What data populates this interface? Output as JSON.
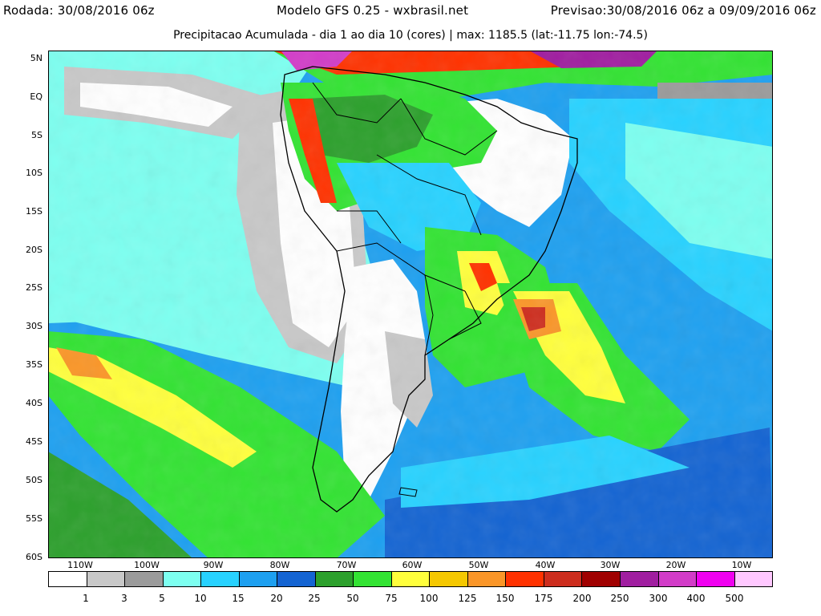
{
  "header": {
    "rodada": "Rodada: 30/08/2016 06z",
    "modelo": "Modelo GFS 0.25 - wxbrasil.net",
    "previsao": "Previsao:30/08/2016 06z a 09/09/2016 06z",
    "subtitle": "Precipitacao Acumulada - dia 1 ao dia 10 (cores) | max: 1185.5 (lat:-11.75 lon:-74.5)"
  },
  "map": {
    "lat_labels": [
      "5N",
      "EQ",
      "5S",
      "10S",
      "15S",
      "20S",
      "25S",
      "30S",
      "35S",
      "40S",
      "45S",
      "50S",
      "55S",
      "60S"
    ],
    "lon_labels": [
      "110W",
      "100W",
      "90W",
      "80W",
      "70W",
      "60W",
      "50W",
      "40W",
      "30W",
      "20W",
      "10W"
    ]
  },
  "legend": {
    "colors": [
      "#ffffff",
      "#c8c8c8",
      "#9b9b9b",
      "#7dfff0",
      "#28d2ff",
      "#1ea0f0",
      "#1464d2",
      "#2ca02c",
      "#33e333",
      "#ffff3c",
      "#f5c800",
      "#fa9628",
      "#ff3200",
      "#cd2d1e",
      "#a00000",
      "#a01ea0",
      "#d23cc8",
      "#f000f0",
      "#ffc8ff"
    ],
    "labels": [
      "1",
      "3",
      "5",
      "10",
      "15",
      "20",
      "25",
      "50",
      "75",
      "100",
      "125",
      "150",
      "175",
      "200",
      "250",
      "300",
      "400",
      "500"
    ]
  }
}
